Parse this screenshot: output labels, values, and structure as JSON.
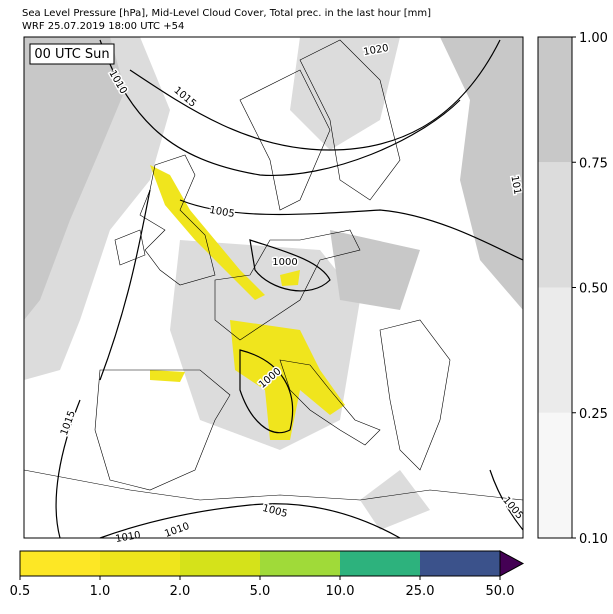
{
  "header": {
    "title": "Sea Level Pressure [hPa], Mid-Level Cloud Cover, Total prec. in the last hour [mm]",
    "subtitle": "WRF 25.07.2019 18:00 UTC +54"
  },
  "map": {
    "time_label": "00 UTC Sun",
    "isobar_labels": [
      "1020",
      "1015",
      "1010",
      "1005",
      "1000",
      "1000",
      "1015",
      "1010",
      "1010",
      "1005",
      "1005",
      "101"
    ]
  },
  "cloud_colorbar": {
    "ticks": [
      {
        "value": 0.1,
        "label": "0.10"
      },
      {
        "value": 0.25,
        "label": "0.25"
      },
      {
        "value": 0.5,
        "label": "0.50"
      },
      {
        "value": 0.75,
        "label": "0.75"
      },
      {
        "value": 1,
        "label": "1.00"
      }
    ],
    "colors": [
      "#f7f7f7",
      "#ebebeb",
      "#dcdcdc",
      "#c8c8c8"
    ]
  },
  "precip_colorbar": {
    "ticks": [
      {
        "value": 0.5,
        "label": "0.5"
      },
      {
        "value": 1,
        "label": "1.0"
      },
      {
        "value": 2,
        "label": "2.0"
      },
      {
        "value": 5,
        "label": "5.0"
      },
      {
        "value": 10,
        "label": "10.0"
      },
      {
        "value": 25,
        "label": "25.0"
      },
      {
        "value": 50,
        "label": "50.0"
      }
    ],
    "colors": [
      "#fde725",
      "#eee51c",
      "#d5e21a",
      "#a0da39",
      "#2db27d",
      "#3b528b"
    ],
    "extend_color": "#440154"
  }
}
